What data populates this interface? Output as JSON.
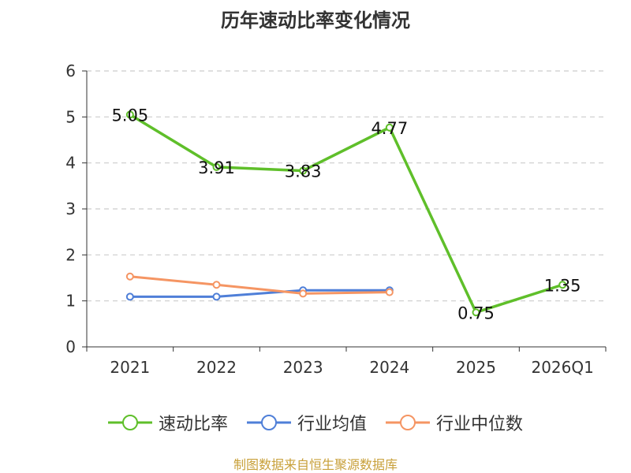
{
  "chart_data": {
    "type": "line",
    "title": "历年速动比率变化情况",
    "categories": [
      "2021",
      "2022",
      "2023",
      "2024",
      "2025",
      "2026Q1"
    ],
    "yticks": [
      "0",
      "1",
      "2",
      "3",
      "4",
      "5",
      "6"
    ],
    "ylim": [
      0,
      6
    ],
    "grid": true,
    "legend_position": "bottom",
    "series": [
      {
        "name": "速动比率",
        "color": "#5fbf2a",
        "values": [
          5.05,
          3.91,
          3.83,
          4.77,
          0.75,
          1.35
        ],
        "labels": [
          "5.05",
          "3.91",
          "3.83",
          "4.77",
          "0.75",
          "1.35"
        ]
      },
      {
        "name": "行业均值",
        "color": "#4f7fd8",
        "values": [
          1.09,
          1.09,
          1.23,
          1.23,
          null,
          null
        ]
      },
      {
        "name": "行业中位数",
        "color": "#f59563",
        "values": [
          1.53,
          1.35,
          1.16,
          1.19,
          null,
          null
        ]
      }
    ]
  },
  "source": "制图数据来自恒生聚源数据库"
}
